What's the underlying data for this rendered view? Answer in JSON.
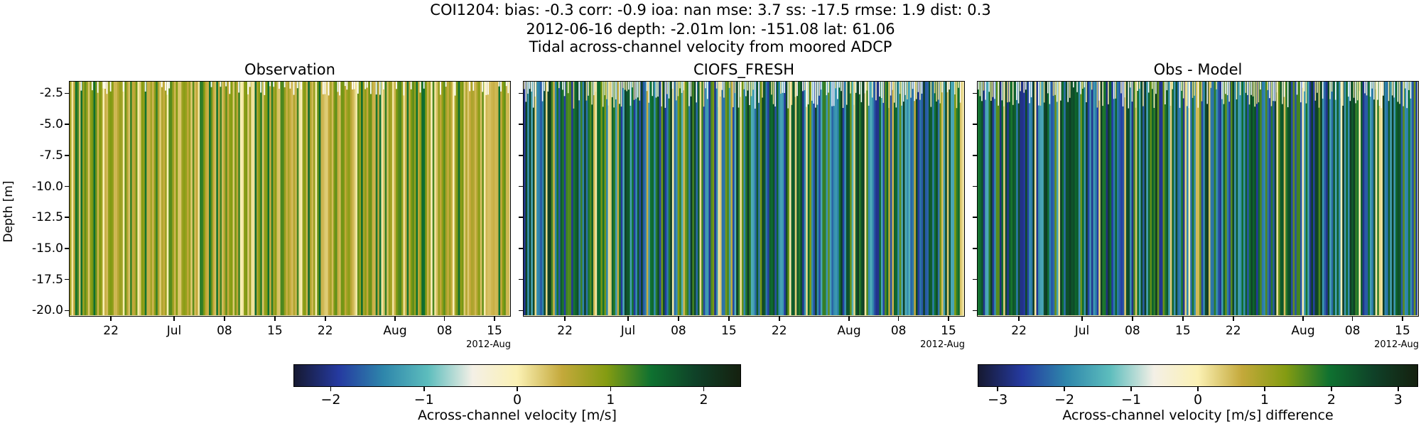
{
  "header": {
    "line1": "COI1204: bias: -0.3  corr: -0.9  ioa: nan  mse: 3.7  ss: -17.5  rmse: 1.9  dist: 0.3",
    "line2": "2012-06-16 depth: -2.01m lon: -151.08 lat: 61.06",
    "line3": "Tidal across-channel velocity from moored ADCP"
  },
  "chart_data": [
    {
      "type": "heatmap",
      "title": "Observation",
      "ylabel": "Depth [m]",
      "ylim": [
        -20.5,
        -1.5
      ],
      "yticks": [
        "-2.5",
        "-5.0",
        "-7.5",
        "-10.0",
        "-12.5",
        "-15.0",
        "-17.5",
        "-20.0"
      ],
      "xticks": [
        "22",
        "Jul",
        "08",
        "15",
        "22",
        "Aug",
        "08",
        "15"
      ],
      "x_offset_label": "2012-Aug",
      "colormap": "delta",
      "color_range": [
        -2.4,
        2.4
      ],
      "dominant_values": "mostly 0 to 1 m/s (yellow-green vertical striping)"
    },
    {
      "type": "heatmap",
      "title": "CIOFS_FRESH",
      "ylim": [
        -20.5,
        -1.5
      ],
      "yticks": [
        "-2.5",
        "-5.0",
        "-7.5",
        "-10.0",
        "-12.5",
        "-15.0",
        "-17.5",
        "-20.0"
      ],
      "xticks": [
        "22",
        "Jul",
        "08",
        "15",
        "22",
        "Aug",
        "08",
        "15"
      ],
      "x_offset_label": "2012-Aug",
      "colormap": "delta",
      "color_range": [
        -2.4,
        2.4
      ],
      "dominant_values": "alternating -2 to +2 m/s (dark blue / green / yellow stripes)"
    },
    {
      "type": "heatmap",
      "title": "Obs - Model",
      "ylim": [
        -20.5,
        -1.5
      ],
      "yticks": [
        "-2.5",
        "-5.0",
        "-7.5",
        "-10.0",
        "-12.5",
        "-15.0",
        "-17.5",
        "-20.0"
      ],
      "xticks": [
        "22",
        "Jul",
        "08",
        "15",
        "22",
        "Aug",
        "08",
        "15"
      ],
      "x_offset_label": "2012-Aug",
      "colormap": "delta",
      "color_range": [
        -3.3,
        3.3
      ],
      "dominant_values": "alternating -3 to +3 m/s (dark blue / green stripes)"
    }
  ],
  "colorbars": [
    {
      "label": "Across-channel velocity [m/s]",
      "ticks": [
        "−2",
        "−1",
        "0",
        "1",
        "2"
      ],
      "tick_values": [
        -2,
        -1,
        0,
        1,
        2
      ],
      "range": [
        -2.4,
        2.4
      ]
    },
    {
      "label": "Across-channel velocity [m/s] difference",
      "ticks": [
        "−3",
        "−2",
        "−1",
        "0",
        "1",
        "2",
        "3"
      ],
      "tick_values": [
        -3,
        -2,
        -1,
        0,
        1,
        2,
        3
      ],
      "range": [
        -3.3,
        3.3
      ]
    }
  ],
  "colormap_stops": [
    "#161931",
    "#253aa0",
    "#2e86ab",
    "#5dbdbd",
    "#f4f0e6",
    "#fbf1b4",
    "#c4a93b",
    "#849c12",
    "#0f7130",
    "#0f4128",
    "#15200f"
  ]
}
